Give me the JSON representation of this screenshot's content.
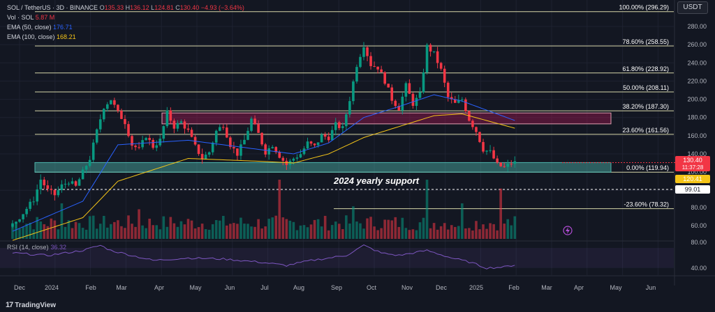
{
  "legend": {
    "symbol": "SOL / TetherUS · 3D · BINANCE",
    "open_label": "O",
    "open": "135.33",
    "high_label": "H",
    "high": "136.12",
    "low_label": "L",
    "low": "124.81",
    "close_label": "C",
    "close": "130.40",
    "change": "−4.93 (−3.64%)",
    "vol_label": "Vol · SOL",
    "vol_value": "5.87 M",
    "ema50_label": "EMA (50, close)",
    "ema50_value": "176.71",
    "ema100_label": "EMA (100, close)",
    "ema100_value": "168.21"
  },
  "currency_button": "USDT",
  "annotation": "2024 yearly support",
  "rsi": {
    "label": "RSI (14, close)",
    "value": "36.32",
    "axis_labels": [
      "80.00",
      "40.00"
    ]
  },
  "brand": {
    "mark": "17",
    "name": "TradingView"
  },
  "colors": {
    "background": "#131722",
    "bull": "#089981",
    "bear": "#f23645",
    "ema50": "#2962ff",
    "ema100": "#f5c518",
    "fib": "#d6d6a8",
    "support_zone": "#4db6ac",
    "resistance_zone": "#c2185b",
    "rsi": "#7e57c2"
  },
  "chart_data": {
    "type": "candlestick",
    "symbol": "SOL / TetherUS",
    "timeframe": "3D",
    "x_axis_labels": [
      "Dec",
      "2024",
      "Feb",
      "Mar",
      "Apr",
      "May",
      "Jun",
      "Jul",
      "Aug",
      "Sep",
      "Oct",
      "Nov",
      "Dec",
      "2025",
      "Feb",
      "Mar",
      "Apr",
      "May",
      "Jun"
    ],
    "y_axis_labels": [
      "280.00",
      "260.00",
      "240.00",
      "220.00",
      "200.00",
      "180.00",
      "160.00",
      "140.00",
      "100.00",
      "80.00",
      "60.00"
    ],
    "price_markers": [
      {
        "label": "130.40",
        "sub": "11:37:28",
        "color": "#f23645"
      },
      {
        "label": "120.41",
        "color": "#f5c518"
      },
      {
        "label": "99.01",
        "color": "#ffffff"
      }
    ],
    "fib_levels": [
      {
        "label": "100.00% (296.29)",
        "price": 296.29
      },
      {
        "label": "78.60% (258.55)",
        "price": 258.55
      },
      {
        "label": "61.80% (228.92)",
        "price": 228.92
      },
      {
        "label": "50.00% (208.11)",
        "price": 208.11
      },
      {
        "label": "38.20% (187.30)",
        "price": 187.3
      },
      {
        "label": "23.60% (161.56)",
        "price": 161.56
      },
      {
        "label": "0.00% (119.94)",
        "price": 119.94
      },
      {
        "label": "-23.60% (78.32)",
        "price": 78.32
      }
    ],
    "support_zone": [
      119.94,
      130.5
    ],
    "resistance_zone": [
      173,
      185
    ],
    "price_waypoints": [
      [
        0,
        62
      ],
      [
        3,
        75
      ],
      [
        6,
        90
      ],
      [
        8,
        112
      ],
      [
        10,
        100
      ],
      [
        12,
        95
      ],
      [
        14,
        105
      ],
      [
        16,
        110
      ],
      [
        18,
        104
      ],
      [
        20,
        120
      ],
      [
        22,
        135
      ],
      [
        24,
        165
      ],
      [
        26,
        192
      ],
      [
        28,
        200
      ],
      [
        30,
        185
      ],
      [
        32,
        175
      ],
      [
        34,
        150
      ],
      [
        36,
        145
      ],
      [
        38,
        160
      ],
      [
        40,
        148
      ],
      [
        42,
        155
      ],
      [
        44,
        185
      ],
      [
        46,
        170
      ],
      [
        48,
        175
      ],
      [
        50,
        165
      ],
      [
        52,
        148
      ],
      [
        54,
        135
      ],
      [
        56,
        142
      ],
      [
        58,
        165
      ],
      [
        60,
        172
      ],
      [
        62,
        150
      ],
      [
        64,
        140
      ],
      [
        66,
        155
      ],
      [
        68,
        178
      ],
      [
        70,
        162
      ],
      [
        72,
        142
      ],
      [
        74,
        150
      ],
      [
        76,
        138
      ],
      [
        78,
        128
      ],
      [
        80,
        135
      ],
      [
        82,
        140
      ],
      [
        84,
        152
      ],
      [
        86,
        148
      ],
      [
        88,
        160
      ],
      [
        90,
        158
      ],
      [
        92,
        172
      ],
      [
        94,
        168
      ],
      [
        96,
        200
      ],
      [
        98,
        238
      ],
      [
        100,
        260
      ],
      [
        102,
        238
      ],
      [
        104,
        235
      ],
      [
        106,
        220
      ],
      [
        108,
        200
      ],
      [
        110,
        190
      ],
      [
        112,
        215
      ],
      [
        114,
        195
      ],
      [
        116,
        205
      ],
      [
        118,
        258
      ],
      [
        120,
        250
      ],
      [
        122,
        232
      ],
      [
        124,
        202
      ],
      [
        126,
        195
      ],
      [
        128,
        200
      ],
      [
        130,
        178
      ],
      [
        132,
        165
      ],
      [
        134,
        145
      ],
      [
        136,
        142
      ],
      [
        138,
        128
      ],
      [
        140,
        125
      ],
      [
        142,
        130
      ],
      [
        143,
        130.4
      ]
    ],
    "ema50_waypoints": [
      [
        0,
        55
      ],
      [
        20,
        88
      ],
      [
        30,
        150
      ],
      [
        50,
        155
      ],
      [
        70,
        145
      ],
      [
        80,
        140
      ],
      [
        90,
        152
      ],
      [
        100,
        180
      ],
      [
        110,
        192
      ],
      [
        120,
        205
      ],
      [
        128,
        198
      ],
      [
        143,
        176.71
      ]
    ],
    "ema100_waypoints": [
      [
        0,
        45
      ],
      [
        20,
        70
      ],
      [
        30,
        110
      ],
      [
        50,
        135
      ],
      [
        70,
        132
      ],
      [
        80,
        130
      ],
      [
        90,
        140
      ],
      [
        100,
        158
      ],
      [
        110,
        170
      ],
      [
        120,
        182
      ],
      [
        128,
        184
      ],
      [
        143,
        168.21
      ]
    ],
    "volume_spikes": [
      [
        76,
        1.0
      ],
      [
        118,
        1.0
      ],
      [
        139,
        0.85
      ],
      [
        14,
        0.6
      ],
      [
        36,
        0.5
      ],
      [
        97,
        0.55
      ],
      [
        128,
        0.6
      ]
    ],
    "rsi_waypoints": [
      [
        0,
        60
      ],
      [
        10,
        55
      ],
      [
        20,
        65
      ],
      [
        25,
        75
      ],
      [
        28,
        65
      ],
      [
        40,
        45
      ],
      [
        50,
        50
      ],
      [
        60,
        48
      ],
      [
        70,
        42
      ],
      [
        78,
        35
      ],
      [
        85,
        45
      ],
      [
        95,
        55
      ],
      [
        100,
        75
      ],
      [
        105,
        60
      ],
      [
        110,
        55
      ],
      [
        118,
        65
      ],
      [
        125,
        50
      ],
      [
        130,
        42
      ],
      [
        135,
        30
      ],
      [
        140,
        32
      ],
      [
        143,
        36.32
      ]
    ]
  }
}
